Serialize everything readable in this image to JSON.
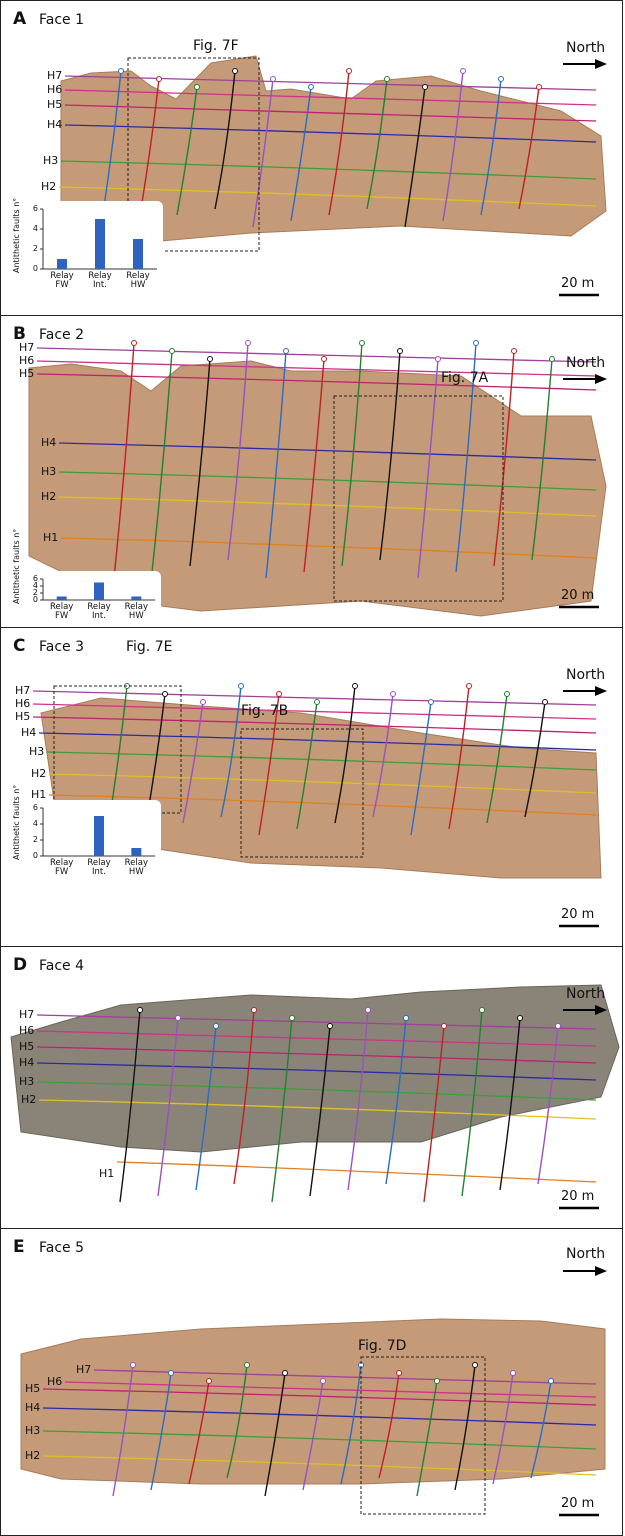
{
  "panels": [
    {
      "letter": "A",
      "title": "Face 1",
      "north": "North",
      "scale": "20 m",
      "figs": [
        "Fig. 7F"
      ],
      "horizons": [
        {
          "label": "H7",
          "color": "#a0409a"
        },
        {
          "label": "H6",
          "color": "#d0308a"
        },
        {
          "label": "H5",
          "color": "#c02070"
        },
        {
          "label": "H4",
          "color": "#2a2aa8"
        },
        {
          "label": "H3",
          "color": "#3aa03a"
        },
        {
          "label": "H2",
          "color": "#e0c020"
        }
      ],
      "chart": {
        "type": "bar",
        "y_label": "Antithetic faults n°",
        "categories": [
          "Relay FW",
          "Relay Int.",
          "Relay HW"
        ],
        "values": [
          1,
          5,
          3
        ],
        "ylim": [
          0,
          6
        ],
        "yticks": [
          0,
          2,
          4,
          6
        ],
        "color": "#2e63c0"
      }
    },
    {
      "letter": "B",
      "title": "Face 2",
      "north": "North",
      "scale": "20 m",
      "figs": [
        "Fig. 7A"
      ],
      "horizons": [
        {
          "label": "H7",
          "color": "#a0409a"
        },
        {
          "label": "H6",
          "color": "#d0308a"
        },
        {
          "label": "H5",
          "color": "#c02070"
        },
        {
          "label": "H4",
          "color": "#2a2aa8"
        },
        {
          "label": "H3",
          "color": "#3aa03a"
        },
        {
          "label": "H2",
          "color": "#e0c020"
        },
        {
          "label": "H1",
          "color": "#e08020"
        }
      ],
      "chart": {
        "type": "bar",
        "y_label": "Antithetic faults n°",
        "categories": [
          "Relay FW",
          "Relay Int.",
          "Relay HW"
        ],
        "values": [
          1,
          5,
          1
        ],
        "ylim": [
          0,
          6
        ],
        "yticks": [
          0,
          2,
          4,
          6
        ],
        "color": "#2e63c0"
      }
    },
    {
      "letter": "C",
      "title": "Face 3",
      "north": "North",
      "scale": "20 m",
      "figs": [
        "Fig. 7E",
        "Fig. 7B"
      ],
      "horizons": [
        {
          "label": "H7",
          "color": "#a0409a"
        },
        {
          "label": "H6",
          "color": "#d0308a"
        },
        {
          "label": "H5",
          "color": "#c02070"
        },
        {
          "label": "H4",
          "color": "#2a2aa8"
        },
        {
          "label": "H3",
          "color": "#3aa03a"
        },
        {
          "label": "H2",
          "color": "#e0c020"
        },
        {
          "label": "H1",
          "color": "#e08020"
        }
      ],
      "chart": {
        "type": "bar",
        "y_label": "Antithetic faults n°",
        "categories": [
          "Relay FW",
          "Relay Int.",
          "Relay HW"
        ],
        "values": [
          0,
          5,
          1
        ],
        "ylim": [
          0,
          6
        ],
        "yticks": [
          0,
          2,
          4,
          6
        ],
        "color": "#2e63c0"
      }
    },
    {
      "letter": "D",
      "title": "Face 4",
      "north": "North",
      "scale": "20 m",
      "figs": [],
      "horizons": [
        {
          "label": "H7",
          "color": "#a0409a"
        },
        {
          "label": "H6",
          "color": "#d0308a"
        },
        {
          "label": "H5",
          "color": "#c02070"
        },
        {
          "label": "H4",
          "color": "#2a2aa8"
        },
        {
          "label": "H3",
          "color": "#3aa03a"
        },
        {
          "label": "H2",
          "color": "#e0c020"
        },
        {
          "label": "H1",
          "color": "#e08020"
        }
      ]
    },
    {
      "letter": "E",
      "title": "Face 5",
      "north": "North",
      "scale": "20 m",
      "figs": [
        "Fig. 7D"
      ],
      "horizons": [
        {
          "label": "H7",
          "color": "#a0409a"
        },
        {
          "label": "H6",
          "color": "#d0308a"
        },
        {
          "label": "H5",
          "color": "#c02070"
        },
        {
          "label": "H4",
          "color": "#2a2aa8"
        },
        {
          "label": "H3",
          "color": "#3aa03a"
        },
        {
          "label": "H2",
          "color": "#e0c020"
        }
      ]
    }
  ]
}
